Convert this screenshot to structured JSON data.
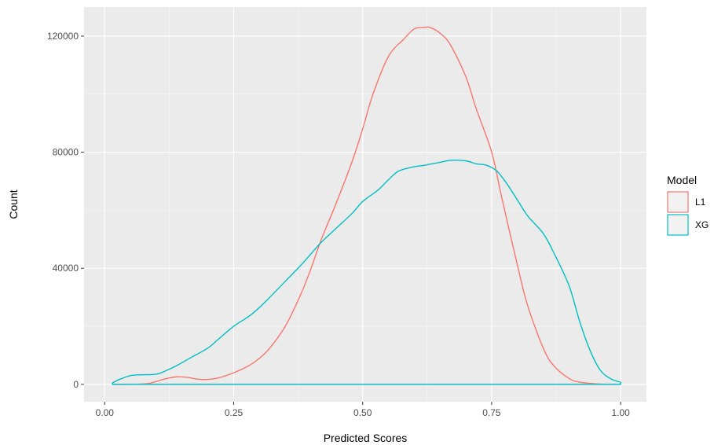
{
  "chart_data": {
    "type": "line",
    "subtype": "density-count",
    "xlabel": "Predicted Scores",
    "ylabel": "Count",
    "xlim": [
      -0.04,
      1.05
    ],
    "ylim": [
      -6000,
      130000
    ],
    "x_ticks": [
      0.0,
      0.25,
      0.5,
      0.75,
      1.0
    ],
    "x_tick_labels": [
      "0.00",
      "0.25",
      "0.50",
      "0.75",
      "1.00"
    ],
    "y_ticks": [
      0,
      40000,
      80000,
      120000
    ],
    "y_tick_labels": [
      "0",
      "40000",
      "80000",
      "120000"
    ],
    "grid": true,
    "legend": {
      "title": "Model",
      "position": "right"
    },
    "series": [
      {
        "name": "L1",
        "color": "#F8766D",
        "x": [
          0.015,
          0.05,
          0.08,
          0.1,
          0.12,
          0.14,
          0.16,
          0.18,
          0.2,
          0.22,
          0.25,
          0.28,
          0.3,
          0.32,
          0.35,
          0.38,
          0.4,
          0.42,
          0.45,
          0.48,
          0.5,
          0.52,
          0.55,
          0.58,
          0.6,
          0.62,
          0.63,
          0.65,
          0.67,
          0.7,
          0.72,
          0.75,
          0.77,
          0.8,
          0.82,
          0.85,
          0.87,
          0.9,
          0.92,
          0.95,
          0.97,
          1.0
        ],
        "values": [
          0,
          0,
          200,
          1000,
          2000,
          2600,
          2400,
          1800,
          1700,
          2200,
          4000,
          6500,
          9000,
          12500,
          20000,
          31000,
          40000,
          50000,
          63000,
          77000,
          88000,
          100000,
          113000,
          119000,
          122500,
          123000,
          123000,
          121000,
          117000,
          106000,
          95000,
          80000,
          64000,
          41000,
          27000,
          12500,
          6500,
          2000,
          800,
          200,
          50,
          0
        ]
      },
      {
        "name": "XG",
        "color": "#00BFC4",
        "x": [
          0.015,
          0.03,
          0.05,
          0.07,
          0.1,
          0.12,
          0.14,
          0.17,
          0.2,
          0.22,
          0.25,
          0.28,
          0.3,
          0.32,
          0.35,
          0.38,
          0.4,
          0.42,
          0.45,
          0.48,
          0.5,
          0.53,
          0.55,
          0.57,
          0.6,
          0.62,
          0.65,
          0.67,
          0.7,
          0.72,
          0.74,
          0.76,
          0.78,
          0.8,
          0.82,
          0.85,
          0.87,
          0.9,
          0.92,
          0.94,
          0.96,
          0.98,
          1.0
        ],
        "values": [
          500,
          1800,
          3000,
          3300,
          3500,
          4800,
          6500,
          9500,
          12500,
          15500,
          20000,
          23500,
          26500,
          30000,
          35500,
          41000,
          45000,
          49000,
          54000,
          59000,
          63000,
          67000,
          70500,
          73500,
          75000,
          75500,
          76500,
          77200,
          77000,
          76000,
          75500,
          73500,
          69000,
          63500,
          58000,
          52000,
          45500,
          34000,
          22000,
          12000,
          5000,
          2000,
          700
        ]
      }
    ]
  }
}
